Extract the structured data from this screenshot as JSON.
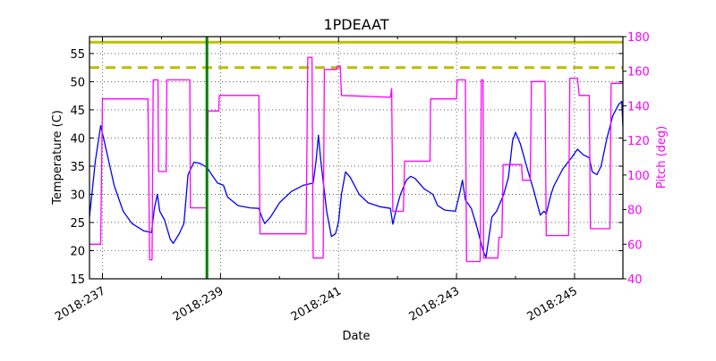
{
  "chart_data": {
    "type": "line",
    "title": "1PDEAAT",
    "xlabel": "Date",
    "ylabel": "Temperature (C)",
    "y2label": "Pitch (deg)",
    "xlim_day": [
      236.78,
      245.82
    ],
    "ylim": [
      15,
      58
    ],
    "y2lim": [
      40,
      180
    ],
    "x_tick_labels": [
      "2018:237",
      "2018:239",
      "2018:241",
      "2018:243",
      "2018:245"
    ],
    "x_major_ticks_day": [
      237,
      239,
      241,
      243,
      245
    ],
    "x_minor_ticks_day": [
      238,
      240,
      242,
      244
    ],
    "y_ticks": [
      15,
      20,
      25,
      30,
      35,
      40,
      45,
      50,
      55
    ],
    "y2_ticks": [
      40,
      60,
      80,
      100,
      120,
      140,
      160,
      180
    ],
    "grid": true,
    "colors": {
      "temperature": "#0000ff",
      "pitch": "#ff00ff",
      "limit_solid": "#bfbf00",
      "limit_dashed": "#bfbf00",
      "now_line": "#008000",
      "axis_text": "#000000",
      "y2_text": "#ff00ff"
    },
    "hlines": [
      {
        "name": "planning-limit",
        "value": 57.0,
        "style": "solid"
      },
      {
        "name": "caution-limit",
        "value": 52.5,
        "style": "dashed"
      }
    ],
    "vline_day": 238.77,
    "series": [
      {
        "name": "Temperature (C)",
        "axis": "left",
        "points": [
          [
            236.78,
            26.0
          ],
          [
            236.88,
            36.0
          ],
          [
            236.97,
            42.2
          ],
          [
            237.05,
            38.5
          ],
          [
            237.2,
            31.5
          ],
          [
            237.35,
            27.0
          ],
          [
            237.5,
            24.8
          ],
          [
            237.7,
            23.5
          ],
          [
            237.83,
            23.2
          ],
          [
            237.88,
            27.5
          ],
          [
            237.93,
            30.0
          ],
          [
            237.97,
            27.0
          ],
          [
            238.05,
            25.5
          ],
          [
            238.15,
            22.0
          ],
          [
            238.2,
            21.3
          ],
          [
            238.3,
            23.0
          ],
          [
            238.38,
            24.8
          ],
          [
            238.45,
            33.5
          ],
          [
            238.55,
            35.7
          ],
          [
            238.65,
            35.5
          ],
          [
            238.77,
            34.8
          ],
          [
            238.85,
            33.5
          ],
          [
            238.95,
            32.0
          ],
          [
            239.05,
            31.6
          ],
          [
            239.12,
            29.5
          ],
          [
            239.3,
            28.0
          ],
          [
            239.5,
            27.6
          ],
          [
            239.65,
            27.5
          ],
          [
            239.7,
            26.0
          ],
          [
            239.75,
            24.8
          ],
          [
            239.85,
            26.0
          ],
          [
            240.0,
            28.5
          ],
          [
            240.2,
            30.5
          ],
          [
            240.4,
            31.6
          ],
          [
            240.57,
            32.0
          ],
          [
            240.62,
            36.0
          ],
          [
            240.66,
            40.5
          ],
          [
            240.7,
            36.0
          ],
          [
            240.8,
            27.0
          ],
          [
            240.88,
            22.5
          ],
          [
            240.95,
            23.0
          ],
          [
            241.0,
            25.0
          ],
          [
            241.05,
            30.0
          ],
          [
            241.12,
            34.0
          ],
          [
            241.2,
            33.0
          ],
          [
            241.35,
            30.0
          ],
          [
            241.5,
            28.5
          ],
          [
            241.7,
            27.8
          ],
          [
            241.88,
            27.5
          ],
          [
            241.92,
            24.7
          ],
          [
            241.97,
            27.0
          ],
          [
            242.05,
            30.0
          ],
          [
            242.15,
            32.5
          ],
          [
            242.22,
            33.2
          ],
          [
            242.3,
            32.8
          ],
          [
            242.45,
            31.0
          ],
          [
            242.6,
            30.0
          ],
          [
            242.68,
            28.0
          ],
          [
            242.8,
            27.2
          ],
          [
            242.98,
            27.0
          ],
          [
            243.05,
            30.0
          ],
          [
            243.1,
            32.5
          ],
          [
            243.15,
            29.0
          ],
          [
            243.25,
            27.5
          ],
          [
            243.35,
            24.0
          ],
          [
            243.45,
            20.0
          ],
          [
            243.5,
            18.8
          ],
          [
            243.6,
            26.0
          ],
          [
            243.68,
            27.0
          ],
          [
            243.8,
            30.0
          ],
          [
            243.88,
            33.0
          ],
          [
            243.95,
            39.5
          ],
          [
            244.0,
            41.0
          ],
          [
            244.08,
            39.0
          ],
          [
            244.2,
            34.5
          ],
          [
            244.3,
            31.0
          ],
          [
            244.42,
            26.3
          ],
          [
            244.48,
            27.0
          ],
          [
            244.52,
            26.5
          ],
          [
            244.6,
            30.0
          ],
          [
            244.65,
            31.5
          ],
          [
            244.8,
            34.5
          ],
          [
            244.95,
            36.5
          ],
          [
            245.05,
            38.0
          ],
          [
            245.15,
            37.0
          ],
          [
            245.25,
            36.5
          ],
          [
            245.3,
            34.0
          ],
          [
            245.38,
            33.5
          ],
          [
            245.45,
            35.0
          ],
          [
            245.55,
            40.0
          ],
          [
            245.65,
            44.0
          ],
          [
            245.75,
            46.0
          ],
          [
            245.8,
            46.5
          ],
          [
            245.82,
            42.0
          ]
        ]
      },
      {
        "name": "Pitch (deg)",
        "axis": "right",
        "points": [
          [
            236.78,
            60
          ],
          [
            236.97,
            60
          ],
          [
            237.0,
            144
          ],
          [
            237.77,
            144
          ],
          [
            237.8,
            51
          ],
          [
            237.84,
            51
          ],
          [
            237.86,
            155
          ],
          [
            237.94,
            155
          ],
          [
            237.95,
            102
          ],
          [
            238.08,
            102
          ],
          [
            238.09,
            155
          ],
          [
            238.48,
            155
          ],
          [
            238.49,
            81
          ],
          [
            238.77,
            81
          ],
          [
            238.79,
            137
          ],
          [
            238.97,
            137
          ],
          [
            238.98,
            146
          ],
          [
            239.65,
            146
          ],
          [
            239.67,
            66
          ],
          [
            240.45,
            66
          ],
          [
            240.48,
            168
          ],
          [
            240.55,
            168
          ],
          [
            240.57,
            52
          ],
          [
            240.74,
            52
          ],
          [
            240.76,
            161
          ],
          [
            240.97,
            161
          ],
          [
            240.98,
            163
          ],
          [
            241.03,
            163
          ],
          [
            241.05,
            146
          ],
          [
            241.88,
            145
          ],
          [
            241.9,
            150
          ],
          [
            241.92,
            79
          ],
          [
            242.1,
            79
          ],
          [
            242.12,
            108
          ],
          [
            242.55,
            108
          ],
          [
            242.56,
            144
          ],
          [
            243.0,
            144
          ],
          [
            243.01,
            155
          ],
          [
            243.15,
            155
          ],
          [
            243.17,
            50
          ],
          [
            243.4,
            50
          ],
          [
            243.42,
            155
          ],
          [
            243.45,
            155
          ],
          [
            243.46,
            52
          ],
          [
            243.7,
            52
          ],
          [
            243.72,
            64
          ],
          [
            243.77,
            64
          ],
          [
            243.79,
            106
          ],
          [
            244.1,
            106
          ],
          [
            244.12,
            97
          ],
          [
            244.25,
            97
          ],
          [
            244.27,
            154
          ],
          [
            244.5,
            154
          ],
          [
            244.52,
            65
          ],
          [
            244.9,
            65
          ],
          [
            244.92,
            156
          ],
          [
            245.05,
            156
          ],
          [
            245.08,
            146
          ],
          [
            245.25,
            146
          ],
          [
            245.27,
            69
          ],
          [
            245.6,
            69
          ],
          [
            245.62,
            153
          ],
          [
            245.82,
            153
          ]
        ]
      }
    ]
  }
}
